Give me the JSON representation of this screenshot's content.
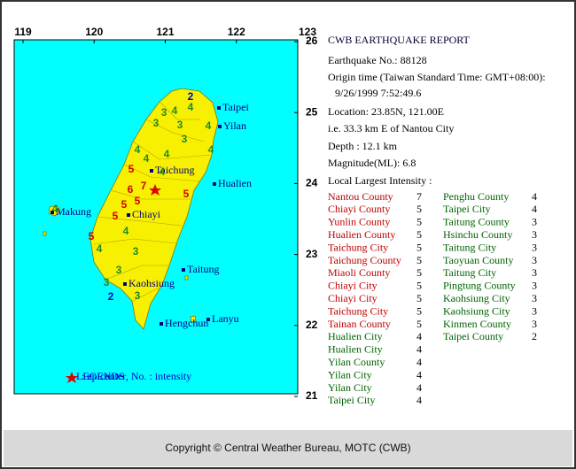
{
  "map": {
    "longitude_ticks": [
      119,
      120,
      121,
      122,
      123
    ],
    "latitude_ticks": [
      26,
      25,
      24,
      23,
      22,
      21
    ],
    "places": [
      "Taipei",
      "Yilan",
      "Taichung",
      "Hualien",
      "Makung",
      "Chiayi",
      "Taitung",
      "Kaohsiung",
      "Hengchun",
      "Lanyu"
    ],
    "intensities": [
      2,
      4,
      4,
      3,
      3,
      3,
      3,
      4,
      4,
      4,
      4,
      5,
      4,
      4,
      7,
      6,
      5,
      5,
      5,
      5,
      4,
      5,
      4,
      3,
      3,
      3,
      3,
      2,
      4
    ],
    "legend": {
      "title": "LEGENDS",
      "text": ": epicenter, No. : intensity"
    }
  },
  "report": {
    "title": "CWB EARTHQUAKE REPORT",
    "lines": [
      "Earthquake No.: 88128",
      "Origin time (Taiwan Standard Time: GMT+08:00):",
      "9/26/1999  7:52:49.6",
      "Location: 23.85N, 121.00E",
      "i.e. 33.3 km E of Nantou City",
      "Depth :  12.1 km",
      "Magnitude(ML): 6.8"
    ],
    "intensity_heading": "Local Largest Intensity :",
    "stations": [
      {
        "name": "Nantou County",
        "intensity": 7
      },
      {
        "name": "Chiayi County",
        "intensity": 5
      },
      {
        "name": "Yunlin County",
        "intensity": 5
      },
      {
        "name": "Hualien County",
        "intensity": 5
      },
      {
        "name": "Taichung City",
        "intensity": 5
      },
      {
        "name": "Taichung County",
        "intensity": 5
      },
      {
        "name": "Miaoli County",
        "intensity": 5
      },
      {
        "name": "Chiayi City",
        "intensity": 5
      },
      {
        "name": "Chiayi City",
        "intensity": 5
      },
      {
        "name": "Taichung City",
        "intensity": 5
      },
      {
        "name": "Tainan County",
        "intensity": 5
      },
      {
        "name": "Hualien City",
        "intensity": 4
      },
      {
        "name": "Hualien City",
        "intensity": 4
      },
      {
        "name": "Yilan County",
        "intensity": 4
      },
      {
        "name": "Yilan City",
        "intensity": 4
      },
      {
        "name": "Yilan City",
        "intensity": 4
      },
      {
        "name": "Taipei City",
        "intensity": 4
      },
      {
        "name": "Penghu County",
        "intensity": 4
      },
      {
        "name": "Taipei City",
        "intensity": 4
      },
      {
        "name": "Taitung County",
        "intensity": 3
      },
      {
        "name": "Hsinchu County",
        "intensity": 3
      },
      {
        "name": "Taitung City",
        "intensity": 3
      },
      {
        "name": "Taoyuan County",
        "intensity": 3
      },
      {
        "name": "Taitung City",
        "intensity": 3
      },
      {
        "name": "Pingtung County",
        "intensity": 3
      },
      {
        "name": "Kaohsiung City",
        "intensity": 3
      },
      {
        "name": "Kaohsiung City",
        "intensity": 3
      },
      {
        "name": "Kinmen County",
        "intensity": 3
      },
      {
        "name": "Taipei County",
        "intensity": 2
      }
    ]
  },
  "footer": "Copyright © Central Weather Bureau, MOTC (CWB)"
}
